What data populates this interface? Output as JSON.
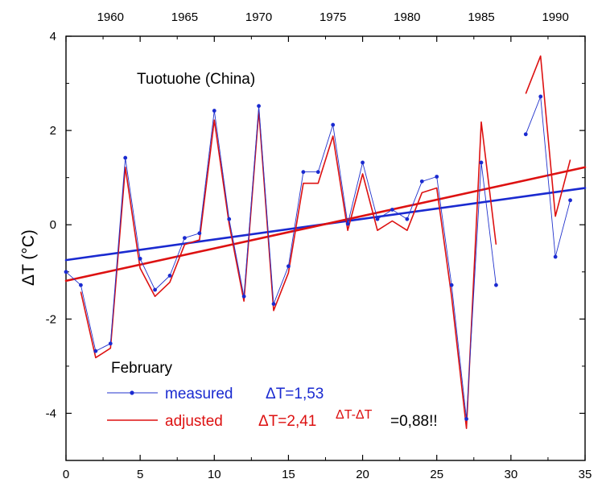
{
  "chart_data": {
    "type": "line",
    "title": "Tuotuohe (China)",
    "ylabel": "ΔT (°C)",
    "xlabel": "",
    "xlim": [
      0,
      35
    ],
    "ylim": [
      -5,
      4
    ],
    "x_ticks": [
      "0",
      "5",
      "10",
      "15",
      "20",
      "25",
      "30",
      "35"
    ],
    "y_ticks": [
      "-4",
      "-2",
      "0",
      "2",
      "4"
    ],
    "top_axis_ticks": [
      "1960",
      "1965",
      "1970",
      "1975",
      "1980",
      "1985",
      "1990"
    ],
    "grid": false,
    "legend": {
      "month": "February",
      "measured_label": "measured",
      "measured_delta": "ΔT=1,53",
      "adjusted_label": "adjusted",
      "adjusted_delta": "ΔT=2,41",
      "difference_expr": "ΔT-ΔT",
      "difference_value": "=0,88!!"
    },
    "series": [
      {
        "name": "measured",
        "color": "#2233cc",
        "marker": "dot",
        "segments": [
          [
            [
              0,
              -1.0
            ],
            [
              1,
              -1.28
            ],
            [
              2,
              -2.68
            ],
            [
              3,
              -2.52
            ],
            [
              4,
              1.42
            ],
            [
              5,
              -0.72
            ],
            [
              6,
              -1.38
            ],
            [
              7,
              -1.08
            ],
            [
              8,
              -0.28
            ],
            [
              9,
              -0.18
            ],
            [
              10,
              2.42
            ],
            [
              11,
              0.12
            ],
            [
              12,
              -1.52
            ],
            [
              13,
              2.52
            ],
            [
              14,
              -1.68
            ],
            [
              15,
              -0.88
            ],
            [
              16,
              1.12
            ],
            [
              17,
              1.12
            ],
            [
              18,
              2.12
            ],
            [
              19,
              0.02
            ],
            [
              20,
              1.32
            ],
            [
              21,
              0.12
            ],
            [
              22,
              0.32
            ],
            [
              23,
              0.12
            ],
            [
              24,
              0.92
            ],
            [
              25,
              1.02
            ],
            [
              26,
              -1.28
            ],
            [
              27,
              -4.12
            ],
            [
              28,
              1.32
            ],
            [
              29,
              -1.28
            ]
          ],
          [
            [
              31,
              1.92
            ],
            [
              32,
              2.72
            ],
            [
              33,
              -0.68
            ],
            [
              34,
              0.52
            ]
          ]
        ]
      },
      {
        "name": "adjusted",
        "color": "#dd1111",
        "marker": "none",
        "segments": [
          [
            [
              1,
              -1.42
            ],
            [
              2,
              -2.82
            ],
            [
              3,
              -2.62
            ],
            [
              4,
              1.22
            ],
            [
              5,
              -0.92
            ],
            [
              6,
              -1.52
            ],
            [
              7,
              -1.22
            ],
            [
              8,
              -0.42
            ],
            [
              9,
              -0.32
            ],
            [
              10,
              2.22
            ],
            [
              11,
              0.02
            ],
            [
              12,
              -1.62
            ],
            [
              13,
              2.42
            ],
            [
              14,
              -1.82
            ],
            [
              15,
              -1.02
            ],
            [
              16,
              0.88
            ],
            [
              17,
              0.88
            ],
            [
              18,
              1.88
            ],
            [
              19,
              -0.12
            ],
            [
              20,
              1.08
            ],
            [
              21,
              -0.12
            ],
            [
              22,
              0.08
            ],
            [
              23,
              -0.12
            ],
            [
              24,
              0.68
            ],
            [
              25,
              0.78
            ],
            [
              26,
              -1.52
            ],
            [
              27,
              -4.32
            ],
            [
              28,
              2.18
            ],
            [
              29,
              -0.42
            ]
          ],
          [
            [
              31,
              2.78
            ],
            [
              32,
              3.58
            ],
            [
              33,
              0.18
            ],
            [
              34,
              1.38
            ]
          ]
        ]
      }
    ],
    "trend_lines": [
      {
        "name": "measured trend",
        "color": "#1a2ad0",
        "from": [
          0,
          -0.75
        ],
        "to": [
          35,
          0.78
        ]
      },
      {
        "name": "adjusted trend",
        "color": "#dd1111",
        "from": [
          0,
          -1.19
        ],
        "to": [
          35,
          1.22
        ]
      }
    ]
  }
}
